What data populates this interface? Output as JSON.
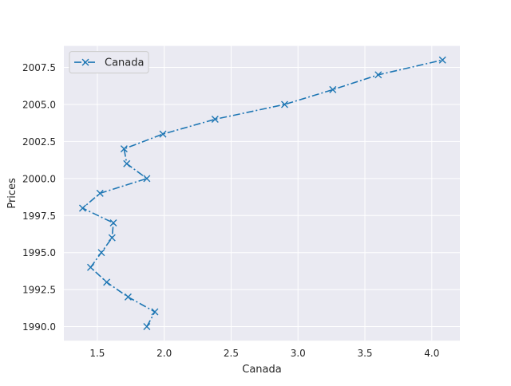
{
  "chart_data": {
    "type": "line",
    "xlabel": "Canada",
    "ylabel": "Prices",
    "xlim": [
      1.25,
      4.21
    ],
    "ylim": [
      1989.05,
      2008.95
    ],
    "x_ticks": [
      1.5,
      2.0,
      2.5,
      3.0,
      3.5,
      4.0
    ],
    "x_tick_labels": [
      "1.5",
      "2.0",
      "2.5",
      "3.0",
      "3.5",
      "4.0"
    ],
    "y_ticks": [
      1990.0,
      1992.5,
      1995.0,
      1997.5,
      2000.0,
      2002.5,
      2005.0,
      2007.5
    ],
    "y_tick_labels": [
      "1990.0",
      "1992.5",
      "1995.0",
      "1997.5",
      "2000.0",
      "2002.5",
      "2005.0",
      "2007.5"
    ],
    "grid": true,
    "legend_position": "top-left",
    "series": [
      {
        "name": "Canada",
        "color": "#1f77b4",
        "line_style": "dash-dot",
        "marker": "x",
        "points": [
          {
            "x": 1.87,
            "y": 1990
          },
          {
            "x": 1.93,
            "y": 1991
          },
          {
            "x": 1.73,
            "y": 1992
          },
          {
            "x": 1.57,
            "y": 1993
          },
          {
            "x": 1.45,
            "y": 1994
          },
          {
            "x": 1.53,
            "y": 1995
          },
          {
            "x": 1.61,
            "y": 1996
          },
          {
            "x": 1.62,
            "y": 1997
          },
          {
            "x": 1.39,
            "y": 1998
          },
          {
            "x": 1.52,
            "y": 1999
          },
          {
            "x": 1.87,
            "y": 2000
          },
          {
            "x": 1.72,
            "y": 2001
          },
          {
            "x": 1.7,
            "y": 2002
          },
          {
            "x": 1.99,
            "y": 2003
          },
          {
            "x": 2.38,
            "y": 2004
          },
          {
            "x": 2.9,
            "y": 2005
          },
          {
            "x": 3.26,
            "y": 2006
          },
          {
            "x": 3.6,
            "y": 2007
          },
          {
            "x": 4.08,
            "y": 2008
          }
        ]
      }
    ]
  }
}
